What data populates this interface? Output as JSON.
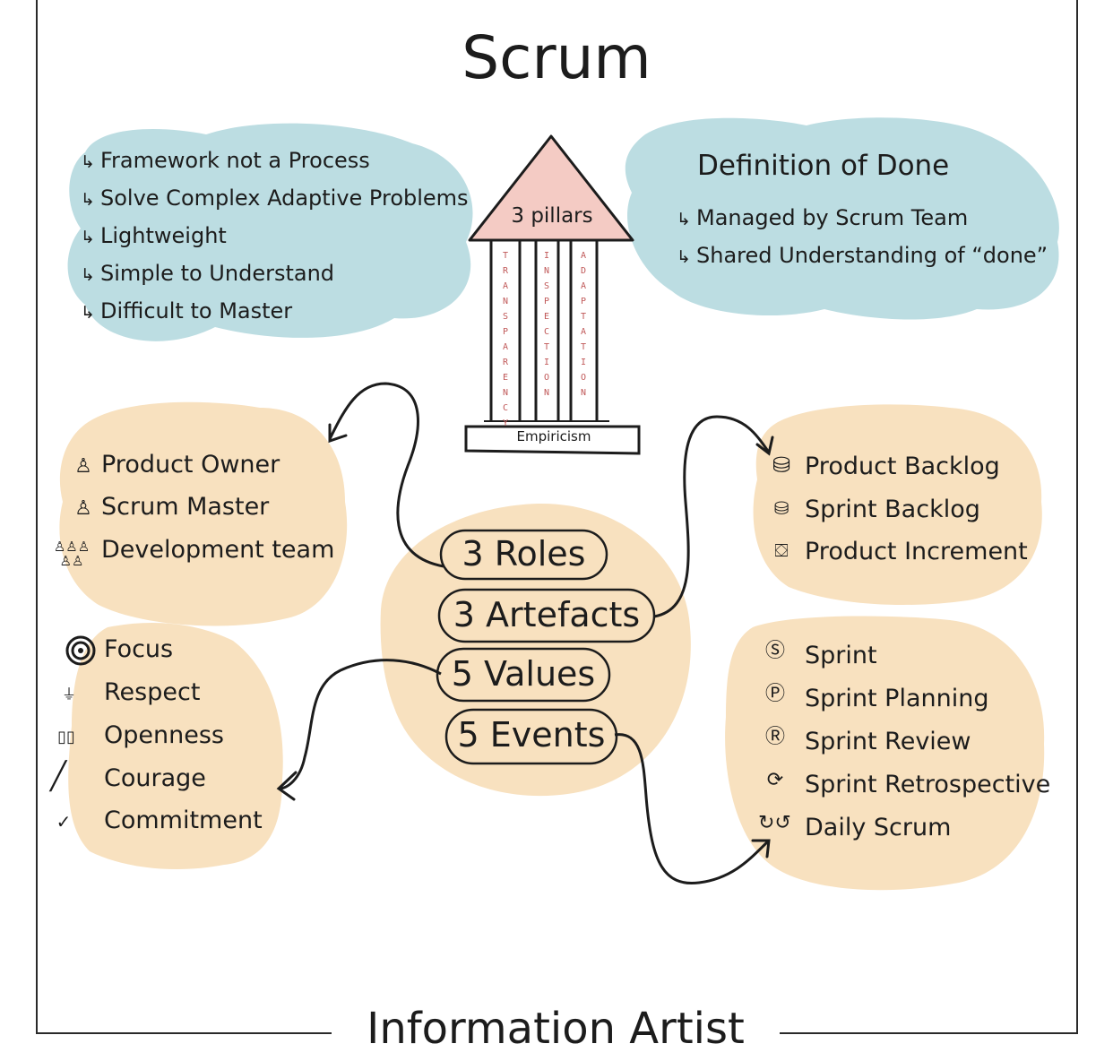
{
  "title": "Scrum",
  "characteristics": {
    "arrow": "↳",
    "items": [
      "Framework not a Process",
      "Solve Complex Adaptive Problems",
      "Lightweight",
      "Simple to Understand",
      "Difficult to Master"
    ]
  },
  "definition_of_done": {
    "title": "Definition of Done",
    "items": [
      "Managed by Scrum Team",
      "Shared Understanding of “done”"
    ]
  },
  "pillars": {
    "roof_label": "3 pillars",
    "base_label": "Empiricism",
    "columns": [
      "TRANSPARENCY",
      "INSPECTION",
      "ADAPTATION"
    ]
  },
  "center": {
    "items": [
      "3 Roles",
      "3 Artefacts",
      "5 Values",
      "5 Events"
    ]
  },
  "roles": [
    {
      "label": "Product Owner",
      "icon": "person-icon"
    },
    {
      "label": "Scrum Master",
      "icon": "person-icon"
    },
    {
      "label": "Development team",
      "icon": "team-icon"
    }
  ],
  "artefacts": [
    {
      "label": "Product Backlog",
      "icon": "jar-icon"
    },
    {
      "label": "Sprint Backlog",
      "icon": "jar-icon"
    },
    {
      "label": "Product Increment",
      "icon": "gift-jar-icon"
    }
  ],
  "values": [
    {
      "label": "Focus",
      "icon": "target-icon"
    },
    {
      "label": "Respect",
      "icon": "respect-icon"
    },
    {
      "label": "Openness",
      "icon": "book-icon"
    },
    {
      "label": "Courage",
      "icon": "pencil-icon"
    },
    {
      "label": "Commitment",
      "icon": "check-icon"
    }
  ],
  "events": [
    {
      "label": "Sprint",
      "icon": "sprint-icon"
    },
    {
      "label": "Sprint Planning",
      "icon": "planning-icon"
    },
    {
      "label": "Sprint Review",
      "icon": "review-icon"
    },
    {
      "label": "Sprint Retrospective",
      "icon": "retro-icon"
    },
    {
      "label": "Daily Scrum",
      "icon": "daily-icon"
    }
  ],
  "footer": {
    "brand": "Information Artist"
  },
  "colors": {
    "blue_cloud": "#bcdde2",
    "peach_cloud": "#f8e1bf",
    "roof_pink": "#f4cbc4",
    "ink": "#1c1c1c"
  }
}
